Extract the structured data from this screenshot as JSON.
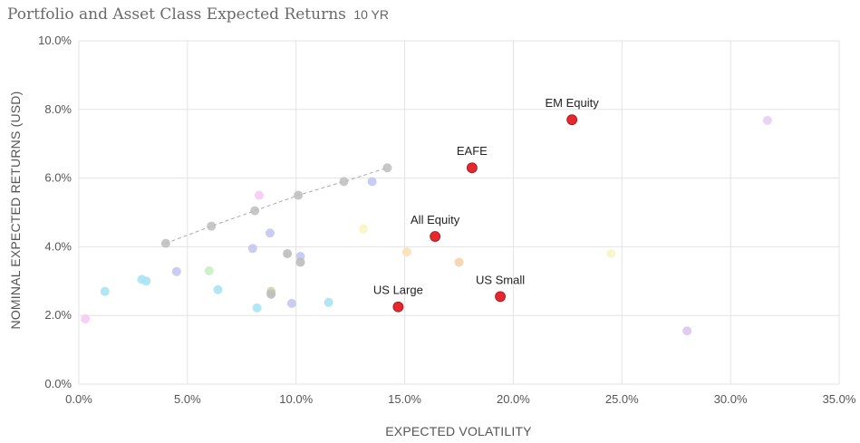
{
  "header": {
    "title": "Portfolio and Asset Class Expected Returns",
    "subtitle": "10 YR"
  },
  "colors": {
    "highlight": "#e8262d",
    "frontier_line": "#aaaaaa",
    "grid": "#e3e3e3"
  },
  "chart_data": {
    "type": "scatter",
    "xlabel": "EXPECTED VOLATILITY",
    "ylabel": "NOMINAL EXPECTED RETURNS (USD)",
    "xlim": [
      0,
      35
    ],
    "ylim": [
      0,
      10
    ],
    "x_ticks": [
      "0.0%",
      "5.0%",
      "10.0%",
      "15.0%",
      "20.0%",
      "25.0%",
      "30.0%",
      "35.0%"
    ],
    "y_ticks": [
      "0.0%",
      "2.0%",
      "4.0%",
      "6.0%",
      "8.0%",
      "10.0%"
    ],
    "grid": true,
    "highlighted_points": [
      {
        "label": "EM Equity",
        "x": 22.7,
        "y": 7.7
      },
      {
        "label": "EAFE",
        "x": 18.1,
        "y": 6.3
      },
      {
        "label": "All Equity",
        "x": 16.4,
        "y": 4.3
      },
      {
        "label": "US Small",
        "x": 19.4,
        "y": 2.55
      },
      {
        "label": "US Large",
        "x": 14.7,
        "y": 2.25
      }
    ],
    "frontier_points": [
      {
        "x": 4.0,
        "y": 4.1
      },
      {
        "x": 6.1,
        "y": 4.6
      },
      {
        "x": 8.1,
        "y": 5.05
      },
      {
        "x": 10.1,
        "y": 5.5
      },
      {
        "x": 12.2,
        "y": 5.9
      },
      {
        "x": 14.2,
        "y": 6.3
      }
    ],
    "other_points": [
      {
        "x": 0.3,
        "y": 1.9,
        "color": "#f6c9f3"
      },
      {
        "x": 1.2,
        "y": 2.7,
        "color": "#a9e4f4"
      },
      {
        "x": 2.9,
        "y": 3.05,
        "color": "#a9e4f4"
      },
      {
        "x": 3.1,
        "y": 3.0,
        "color": "#a9e4f4"
      },
      {
        "x": 4.5,
        "y": 3.28,
        "color": "#c4c6f1"
      },
      {
        "x": 6.0,
        "y": 3.3,
        "color": "#c9f0c4"
      },
      {
        "x": 6.4,
        "y": 2.75,
        "color": "#a9e4f4"
      },
      {
        "x": 8.0,
        "y": 3.95,
        "color": "#c4c6f1"
      },
      {
        "x": 8.2,
        "y": 2.22,
        "color": "#a9e4f4"
      },
      {
        "x": 8.3,
        "y": 5.5,
        "color": "#f6c9f3"
      },
      {
        "x": 8.8,
        "y": 4.4,
        "color": "#c4c6f1"
      },
      {
        "x": 8.85,
        "y": 2.7,
        "color": "#d2d2a8"
      },
      {
        "x": 8.85,
        "y": 2.62,
        "color": "#bdbdbd"
      },
      {
        "x": 9.6,
        "y": 3.8,
        "color": "#bdbdbd"
      },
      {
        "x": 9.8,
        "y": 2.35,
        "color": "#c4c6f1"
      },
      {
        "x": 10.2,
        "y": 3.72,
        "color": "#c4c6f1"
      },
      {
        "x": 10.2,
        "y": 3.55,
        "color": "#bdbdbd"
      },
      {
        "x": 11.5,
        "y": 2.38,
        "color": "#a9e4f4"
      },
      {
        "x": 13.1,
        "y": 4.52,
        "color": "#f7f5c4"
      },
      {
        "x": 13.5,
        "y": 5.9,
        "color": "#c4c6f1"
      },
      {
        "x": 15.1,
        "y": 3.85,
        "color": "#f8e1b4"
      },
      {
        "x": 17.5,
        "y": 3.55,
        "color": "#f8d2ac"
      },
      {
        "x": 24.5,
        "y": 3.8,
        "color": "#f7f5c4"
      },
      {
        "x": 28.0,
        "y": 1.55,
        "color": "#dcc6f1"
      },
      {
        "x": 31.7,
        "y": 7.68,
        "color": "#e3d0f6"
      }
    ]
  }
}
